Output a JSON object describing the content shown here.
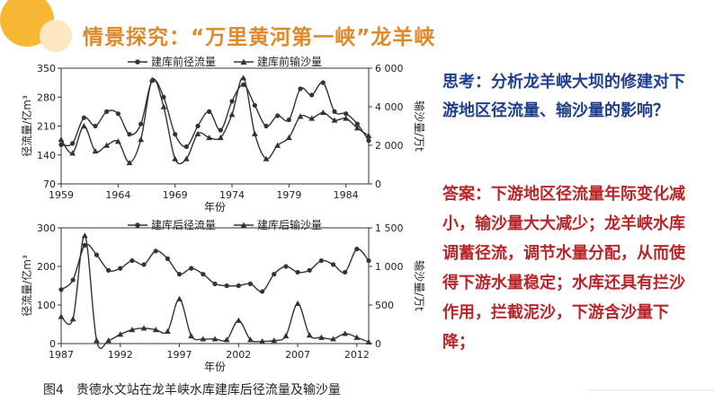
{
  "slide_title": "情景探究：“万里黄河第一峡”龙羊峡",
  "question": "思考：分析龙羊峡大坝的修建对下游地区径流量、输沙量的影响？",
  "answer": "答案：下游地区径流量年际变化减小，输沙量大大减少；龙羊峡水库调蓄径流，调节水量分配，从而使得下游水量稳定；水库还具有拦沙作用，拦截泥沙，下游含沙量下降；",
  "figure_caption": "图4　贵德水文站在龙羊峡水库建库后径流量及输沙量",
  "colors": {
    "title": "#e0892a",
    "question": "#1f3f8c",
    "answer": "#b8262a",
    "accent_circle": "#f7b733",
    "accent_circle_light": "#fde7c1"
  },
  "chart_data": [
    {
      "type": "line",
      "xlabel": "年份",
      "ylabel_left": "径流量/亿m³",
      "ylabel_right": "输沙量/万t",
      "x_ticks": [
        1959,
        1964,
        1969,
        1974,
        1979,
        1984
      ],
      "y_left_ticks": [
        70,
        140,
        210,
        280,
        350
      ],
      "y_right_ticks": [
        0,
        2000,
        4000,
        6000
      ],
      "ylim_left": [
        70,
        350
      ],
      "ylim_right": [
        0,
        6000
      ],
      "xlim": [
        1959,
        1986
      ],
      "grid": false,
      "legend_position": "top-center",
      "series": [
        {
          "name": "建库前径流量",
          "axis": "left",
          "marker": "circle",
          "x": [
            1959,
            1960,
            1961,
            1962,
            1963,
            1964,
            1965,
            1966,
            1967,
            1968,
            1969,
            1970,
            1971,
            1972,
            1973,
            1974,
            1975,
            1976,
            1977,
            1978,
            1979,
            1980,
            1981,
            1982,
            1983,
            1984,
            1985,
            1986
          ],
          "y": [
            165,
            168,
            230,
            210,
            245,
            240,
            190,
            215,
            320,
            280,
            190,
            160,
            210,
            245,
            200,
            270,
            310,
            260,
            210,
            235,
            225,
            300,
            285,
            315,
            245,
            240,
            215,
            175
          ]
        },
        {
          "name": "建库前输沙量",
          "axis": "right",
          "marker": "triangle",
          "x": [
            1959,
            1960,
            1961,
            1962,
            1963,
            1964,
            1965,
            1966,
            1967,
            1968,
            1969,
            1970,
            1971,
            1972,
            1973,
            1974,
            1975,
            1976,
            1977,
            1978,
            1979,
            1980,
            1981,
            1982,
            1983,
            1984,
            1985,
            1986
          ],
          "y": [
            2300,
            1600,
            3000,
            1700,
            2000,
            2200,
            1100,
            2300,
            5400,
            4000,
            1300,
            1300,
            2600,
            2400,
            2400,
            3600,
            5500,
            2600,
            1300,
            2000,
            2400,
            3500,
            3400,
            3700,
            3300,
            3400,
            2900,
            2500
          ]
        }
      ]
    },
    {
      "type": "line",
      "xlabel": "年份",
      "ylabel_left": "径流量/亿m³",
      "ylabel_right": "输沙量/万t",
      "x_ticks": [
        1987,
        1992,
        1997,
        2002,
        2007,
        2012
      ],
      "y_left_ticks": [
        0,
        100,
        200,
        300
      ],
      "y_right_ticks": [
        0,
        500,
        1000,
        1500
      ],
      "ylim_left": [
        0,
        300
      ],
      "ylim_right": [
        0,
        1500
      ],
      "xlim": [
        1987,
        2013
      ],
      "grid": false,
      "legend_position": "top-center",
      "series": [
        {
          "name": "建库后径流量",
          "axis": "left",
          "marker": "circle",
          "x": [
            1987,
            1988,
            1989,
            1990,
            1991,
            1992,
            1993,
            1994,
            1995,
            1996,
            1997,
            1998,
            1999,
            2000,
            2001,
            2002,
            2003,
            2004,
            2005,
            2006,
            2007,
            2008,
            2009,
            2010,
            2011,
            2012,
            2013
          ],
          "y": [
            140,
            165,
            255,
            230,
            190,
            195,
            215,
            205,
            240,
            220,
            180,
            195,
            180,
            155,
            150,
            150,
            155,
            135,
            180,
            200,
            185,
            190,
            215,
            205,
            185,
            245,
            215
          ]
        },
        {
          "name": "建库后输沙量",
          "axis": "right",
          "marker": "triangle",
          "x": [
            1987,
            1988,
            1989,
            1990,
            1991,
            1992,
            1993,
            1994,
            1995,
            1996,
            1997,
            1998,
            1999,
            2000,
            2001,
            2002,
            2003,
            2004,
            2005,
            2006,
            2007,
            2008,
            2009,
            2010,
            2011,
            2012,
            2013
          ],
          "y": [
            350,
            320,
            1400,
            40,
            40,
            120,
            180,
            200,
            180,
            160,
            580,
            100,
            60,
            60,
            50,
            300,
            50,
            30,
            40,
            100,
            520,
            110,
            80,
            60,
            130,
            80,
            20
          ]
        }
      ]
    }
  ]
}
